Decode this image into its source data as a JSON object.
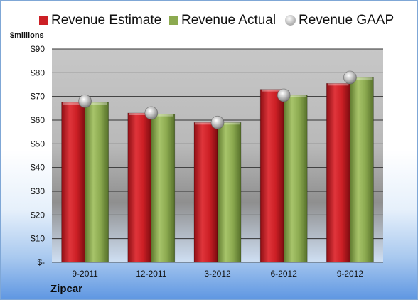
{
  "chart_data": {
    "type": "bar",
    "unit_label": "$millions",
    "categories": [
      "9-2011",
      "12-2011",
      "3-2012",
      "6-2012",
      "9-2012"
    ],
    "series": [
      {
        "name": "Revenue Estimate",
        "type": "bar",
        "color": "#cc1f25",
        "values": [
          67.5,
          63,
          59,
          73,
          75.5
        ]
      },
      {
        "name": "Revenue Actual",
        "type": "bar",
        "color": "#8caa50",
        "values": [
          67.5,
          62.5,
          59,
          70.5,
          78
        ]
      },
      {
        "name": "Revenue GAAP",
        "type": "marker",
        "color": "#c4c4c4",
        "values": [
          68,
          63,
          59,
          70.5,
          78
        ]
      }
    ],
    "y_ticks": [
      "$-",
      "$10",
      "$20",
      "$30",
      "$40",
      "$50",
      "$60",
      "$70",
      "$80",
      "$90"
    ],
    "ylim": [
      0,
      90
    ],
    "grid": true,
    "legend_position": "top",
    "company": "Zipcar"
  }
}
